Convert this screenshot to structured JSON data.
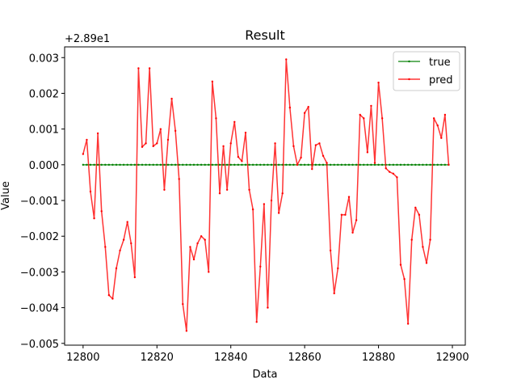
{
  "chart_data": {
    "type": "line",
    "title": "Result",
    "xlabel": "Data",
    "ylabel": "Value",
    "y_offset_text": "+2.89e1",
    "xlim": [
      12795,
      12903.5
    ],
    "ylim": [
      -0.00505,
      0.0033
    ],
    "x_ticks": [
      12800,
      12820,
      12840,
      12860,
      12880,
      12900
    ],
    "x_tick_labels": [
      "12800",
      "12820",
      "12840",
      "12860",
      "12880",
      "12900"
    ],
    "y_ticks": [
      -0.005,
      -0.004,
      -0.003,
      -0.002,
      -0.001,
      0.0,
      0.001,
      0.002,
      0.003
    ],
    "y_tick_labels": [
      "−0.005",
      "−0.004",
      "−0.003",
      "−0.002",
      "−0.001",
      "0.000",
      "0.001",
      "0.002",
      "0.003"
    ],
    "grid": false,
    "legend_position": "top-right",
    "x_start": 12800,
    "x_step": 1,
    "series": [
      {
        "name": "true",
        "color": "#008000",
        "values": [
          0,
          0,
          0,
          0,
          0,
          0,
          0,
          0,
          0,
          0,
          0,
          0,
          0,
          0,
          0,
          0,
          0,
          0,
          0,
          0,
          0,
          0,
          0,
          0,
          0,
          0,
          0,
          0,
          0,
          0,
          0,
          0,
          0,
          0,
          0,
          0,
          0,
          0,
          0,
          0,
          0,
          0,
          0,
          0,
          0,
          0,
          0,
          0,
          0,
          0,
          0,
          0,
          0,
          0,
          0,
          0,
          0,
          0,
          0,
          0,
          0,
          0,
          0,
          0,
          0,
          0,
          0,
          0,
          0,
          0,
          0,
          0,
          0,
          0,
          0,
          0,
          0,
          0,
          0,
          0,
          0,
          0,
          0,
          0,
          0,
          0,
          0,
          0,
          0,
          0,
          0,
          0,
          0,
          0,
          0,
          0,
          0,
          0,
          0,
          0
        ]
      },
      {
        "name": "pred",
        "color": "#ff0000",
        "values": [
          0.0003,
          0.0007,
          -0.00075,
          -0.0015,
          0.00088,
          -0.0013,
          -0.0023,
          -0.00365,
          -0.00375,
          -0.0029,
          -0.0024,
          -0.0021,
          -0.0016,
          -0.0022,
          -0.00315,
          0.0027,
          0.0005,
          0.0006,
          0.0027,
          0.00052,
          0.0006,
          0.001,
          -0.0007,
          0.0007,
          0.00185,
          0.00095,
          -0.0004,
          -0.0039,
          -0.00465,
          -0.0023,
          -0.00265,
          -0.0022,
          -0.002,
          -0.0021,
          -0.003,
          0.00233,
          0.0013,
          -0.0008,
          0.00052,
          -0.0007,
          0.0006,
          0.0012,
          0.00022,
          0.0001,
          0.0009,
          -0.0007,
          -0.00125,
          -0.0044,
          -0.00285,
          -0.0011,
          -0.004,
          -0.001,
          0.0006,
          -0.00135,
          -0.0008,
          0.00295,
          0.0016,
          0.00052,
          0.0,
          0.0002,
          0.00145,
          0.00162,
          -0.00012,
          0.00055,
          0.0006,
          0.00025,
          5e-05,
          -0.0024,
          -0.0036,
          -0.0029,
          -0.0014,
          -0.0014,
          -0.0009,
          -0.0019,
          -0.00155,
          0.0014,
          0.0013,
          0.00035,
          0.00165,
          5e-05,
          0.0023,
          0.0013,
          -0.0001,
          -0.0002,
          -0.00025,
          -0.00035,
          -0.0028,
          -0.0032,
          -0.00445,
          -0.0021,
          -0.0012,
          -0.0014,
          -0.0023,
          -0.00275,
          -0.0021,
          0.0013,
          0.0011,
          0.00075,
          0.0014,
          0.0
        ]
      }
    ]
  }
}
